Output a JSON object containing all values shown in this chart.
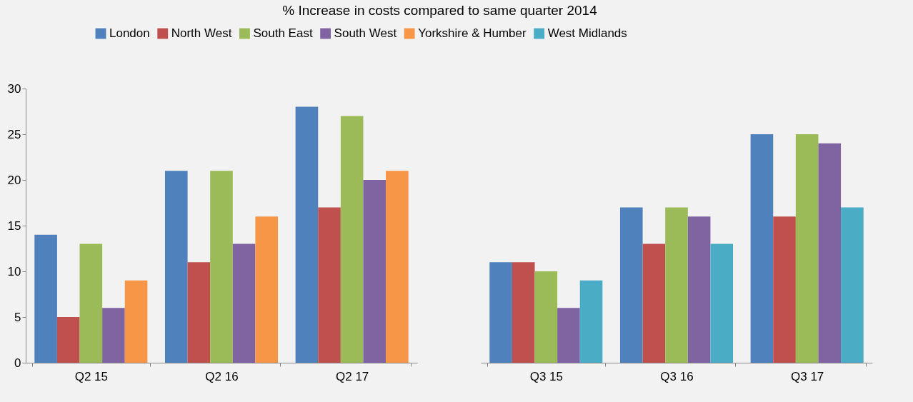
{
  "chart_data": [
    {
      "type": "bar",
      "title": "% Increase in costs compared to same quarter 2014",
      "categories": [
        "Q2 15",
        "Q2 16",
        "Q2 17"
      ],
      "ylim": [
        0,
        30
      ],
      "yticks": [
        0,
        5,
        10,
        15,
        20,
        25,
        30
      ],
      "grid": false,
      "legend": "top",
      "series": [
        {
          "name": "London",
          "color": "#4f81bd",
          "values": [
            14,
            21,
            28
          ]
        },
        {
          "name": "North West",
          "color": "#c0504d",
          "values": [
            5,
            11,
            17
          ]
        },
        {
          "name": "South East",
          "color": "#9bbb59",
          "values": [
            13,
            21,
            27
          ]
        },
        {
          "name": "South West",
          "color": "#8064a2",
          "values": [
            6,
            13,
            20
          ]
        },
        {
          "name": "Yorkshire & Humber",
          "color": "#f79646",
          "values": [
            9,
            16,
            21
          ]
        }
      ]
    },
    {
      "type": "bar",
      "categories": [
        "Q3 15",
        "Q3 16",
        "Q3 17"
      ],
      "ylim": [
        0,
        30
      ],
      "yticks": [
        0,
        5,
        10,
        15,
        20,
        25,
        30
      ],
      "grid": false,
      "legend": "top",
      "tick_labels": "x",
      "series": [
        {
          "name": "London",
          "color": "#4f81bd",
          "values": [
            11,
            17,
            25
          ]
        },
        {
          "name": "North West",
          "color": "#c0504d",
          "values": [
            11,
            13,
            16
          ]
        },
        {
          "name": "South East",
          "color": "#9bbb59",
          "values": [
            10,
            17,
            25
          ]
        },
        {
          "name": "South West",
          "color": "#8064a2",
          "values": [
            6,
            16,
            24
          ]
        },
        {
          "name": "West Midlands",
          "color": "#4bacc6",
          "values": [
            9,
            13,
            17
          ]
        }
      ]
    }
  ]
}
